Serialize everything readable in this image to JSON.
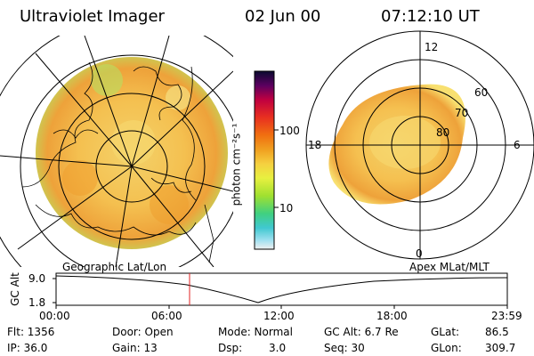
{
  "header": {
    "instrument": "Ultraviolet Imager",
    "date": "02 Jun 00",
    "time": "07:12:10 UT"
  },
  "colorbar": {
    "unit_label": "photon cm⁻²s⁻¹",
    "ticks": [
      "100",
      "10"
    ]
  },
  "polar_plot": {
    "clock_labels": [
      "12",
      "18",
      "6",
      "0"
    ],
    "lat_labels": [
      "60",
      "70",
      "80"
    ]
  },
  "timeline": {
    "left_label": "Geographic Lat/Lon",
    "right_label": "Apex MLat/MLT",
    "yaxis_label": "GC Alt",
    "y_ticks": [
      "9.0",
      "1.8"
    ],
    "x_ticks": [
      "00:00",
      "06:00",
      "12:00",
      "18:00",
      "23:59"
    ],
    "marker_time": "07:12"
  },
  "info": {
    "flt": "Flt: 1356",
    "ip": "IP: 36.0",
    "door": "Door: Open",
    "gain": "Gain: 13",
    "mode": "Mode: Normal",
    "dsp_label": "Dsp:",
    "dsp_value": "3.0",
    "gc_alt": "GC Alt: 6.7 Re",
    "seq": "Seq: 30",
    "glat_label": "GLat:",
    "glat_value": "86.5",
    "glon_label": "GLon:",
    "glon_value": "309.7"
  },
  "colors": {
    "aurora_orange": "#f0a020",
    "aurora_yellow": "#f5d050",
    "aurora_green": "#a8e040",
    "marker_red": "#e02020"
  }
}
